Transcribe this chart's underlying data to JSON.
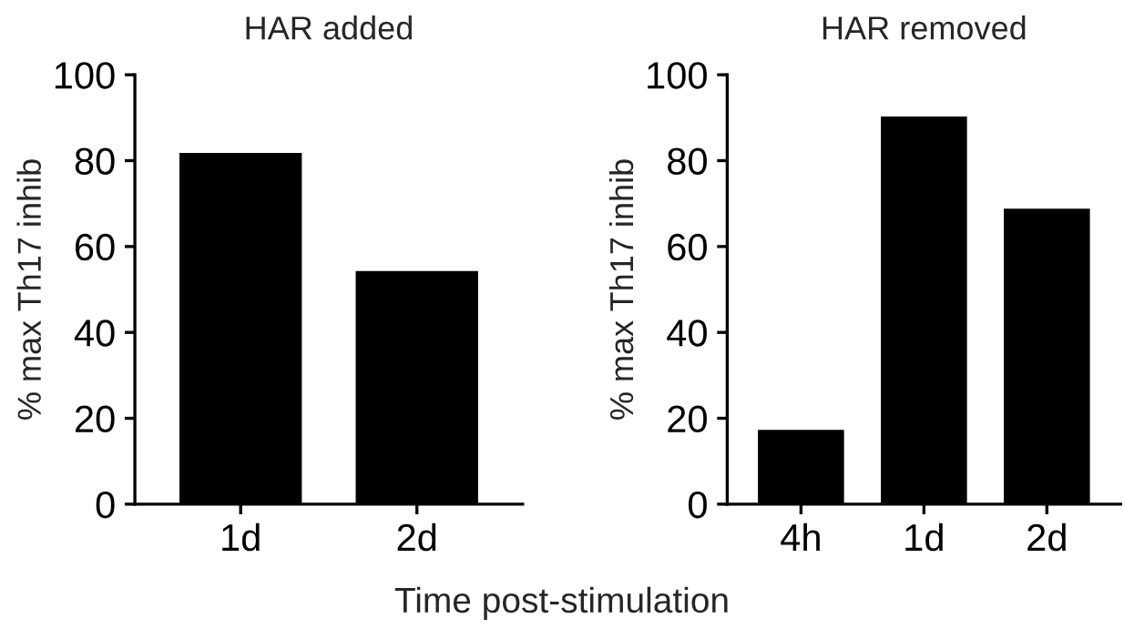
{
  "chart_data": [
    {
      "type": "bar",
      "title": "HAR added",
      "ylabel": "% max Th17 inhib",
      "categories": [
        "1d",
        "2d"
      ],
      "values": [
        81.5,
        54
      ],
      "color": "#000000",
      "ylim": [
        0,
        100
      ],
      "yticks": [
        0,
        20,
        40,
        60,
        80,
        100
      ],
      "grid": false,
      "annotations": [
        "Time post-stimulation"
      ]
    },
    {
      "type": "bar",
      "title": "HAR removed",
      "ylabel": "% max Th17 inhib",
      "categories": [
        "4h",
        "1d",
        "2d"
      ],
      "values": [
        17,
        90,
        68.5
      ],
      "color": "#000000",
      "ylim": [
        0,
        100
      ],
      "yticks": [
        0,
        20,
        40,
        60,
        80,
        100
      ],
      "grid": false
    }
  ]
}
